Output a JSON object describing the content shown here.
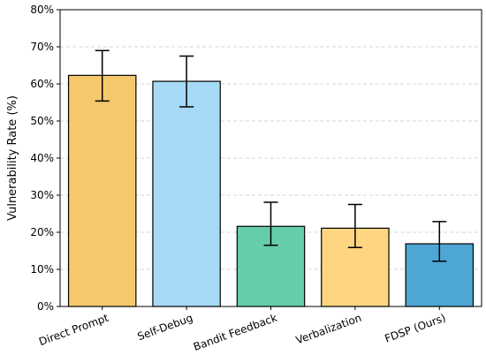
{
  "chart_data": {
    "type": "bar",
    "categories": [
      "Direct Prompt",
      "Self-Debug",
      "Bandit Feedback",
      "Verbalization",
      "FDSP (Ours)"
    ],
    "values": [
      62.3,
      60.7,
      21.6,
      21.1,
      16.9
    ],
    "error_low": [
      55.4,
      53.8,
      16.5,
      15.9,
      12.2
    ],
    "error_high": [
      69.0,
      67.5,
      28.1,
      27.5,
      22.9
    ],
    "bar_colors": [
      "#F5C86E",
      "#A6D9F5",
      "#66CDAA",
      "#FED581",
      "#4DA6D4"
    ],
    "title": "",
    "xlabel": "",
    "ylabel": "Vulnerability Rate (%)",
    "ylim": [
      0,
      80
    ],
    "yticks": [
      "0%",
      "10%",
      "20%",
      "30%",
      "40%",
      "50%",
      "60%",
      "70%",
      "80%"
    ],
    "ytick_values": [
      0,
      10,
      20,
      30,
      40,
      50,
      60,
      70,
      80
    ],
    "grid": "horizontal dashed",
    "legend": "none"
  }
}
